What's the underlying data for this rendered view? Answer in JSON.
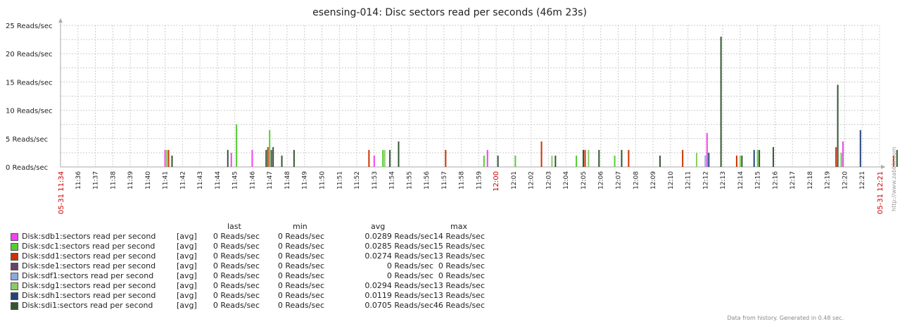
{
  "footer": "Data from history. Generated in 0.48 sec.",
  "side_url": "http://www.zabbix.com",
  "legend_headers": {
    "last": "last",
    "min": "min",
    "avg": "avg",
    "max": "max"
  },
  "chart_data": {
    "type": "bar",
    "title": "esensing-014: Disc sectors read per seconds (46m 23s)",
    "ylim": [
      0,
      25
    ],
    "y_ticks": [
      "0 Reads/sec",
      "5 Reads/sec",
      "10 Reads/sec",
      "15 Reads/sec",
      "20 Reads/sec",
      "25 Reads/sec"
    ],
    "x_range_minutes": [
      694,
      741
    ],
    "x_ticks": [
      "11:36",
      "11:37",
      "11:38",
      "11:39",
      "11:40",
      "11:41",
      "11:42",
      "11:43",
      "11:44",
      "11:45",
      "11:46",
      "11:47",
      "11:48",
      "11:49",
      "11:50",
      "11:51",
      "11:52",
      "11:53",
      "11:54",
      "11:55",
      "11:56",
      "11:57",
      "11:58",
      "11:59",
      "12:00",
      "12:01",
      "12:02",
      "12:03",
      "12:04",
      "12:05",
      "12:06",
      "12:07",
      "12:08",
      "12:09",
      "12:10",
      "12:11",
      "12:12",
      "12:13",
      "12:14",
      "12:15",
      "12:16",
      "12:17",
      "12:18",
      "12:19",
      "12:20",
      "12:21"
    ],
    "x_label_start": "05-31 11:34",
    "x_label_end": "05-31 12:21",
    "grid": true,
    "series": [
      {
        "name": "Disk:sdb1:sectors read per second",
        "func": "[avg]",
        "color": "#ee44ee",
        "last": "0 Reads/sec",
        "min": "0 Reads/sec",
        "avg": "0.0289 Reads/sec",
        "max": "14 Reads/sec",
        "points": [
          [
            700.0,
            3
          ],
          [
            703.8,
            2.5
          ],
          [
            705.0,
            3
          ],
          [
            712.0,
            2
          ],
          [
            718.5,
            3
          ],
          [
            731.1,
            6
          ],
          [
            738.9,
            4.5
          ],
          [
            742.6,
            2
          ]
        ]
      },
      {
        "name": "Disk:sdc1:sectors read per second",
        "func": "[avg]",
        "color": "#55cc33",
        "last": "0 Reads/sec",
        "min": "0 Reads/sec",
        "avg": "0.0285 Reads/sec",
        "max": "15 Reads/sec",
        "points": [
          [
            704.1,
            7.5
          ],
          [
            706.0,
            6.5
          ],
          [
            712.5,
            3
          ],
          [
            718.3,
            2
          ],
          [
            720.1,
            2
          ],
          [
            723.6,
            2
          ],
          [
            725.8,
            2
          ],
          [
            734.0,
            3
          ],
          [
            738.8,
            2.5
          ]
        ]
      },
      {
        "name": "Disk:sdd1:sectors read per second",
        "func": "[avg]",
        "color": "#cc3300",
        "last": "0 Reads/sec",
        "min": "0 Reads/sec",
        "avg": "0.0274 Reads/sec",
        "max": "13 Reads/sec",
        "points": [
          [
            700.2,
            3
          ],
          [
            705.9,
            3.5
          ],
          [
            711.7,
            3
          ],
          [
            716.1,
            3
          ],
          [
            721.6,
            4.5
          ],
          [
            724.1,
            3
          ],
          [
            726.6,
            3
          ],
          [
            729.7,
            3
          ],
          [
            732.8,
            2
          ],
          [
            738.5,
            3.5
          ],
          [
            741.8,
            2
          ]
        ]
      },
      {
        "name": "Disk:sde1:sectors read per second",
        "func": "[avg]",
        "color": "#664466",
        "last": "0 Reads/sec",
        "min": "0 Reads/sec",
        "avg": "0 Reads/sec",
        "max": "0 Reads/sec",
        "points": [
          [
            706.1,
            3
          ]
        ]
      },
      {
        "name": "Disk:sdf1:sectors read per second",
        "func": "[avg]",
        "color": "#88aadd",
        "last": "0 Reads/sec",
        "min": "0 Reads/sec",
        "avg": "0 Reads/sec",
        "max": "0 Reads/sec",
        "points": [
          [
            731.0,
            2
          ]
        ]
      },
      {
        "name": "Disk:sdg1:sectors read per second",
        "func": "[avg]",
        "color": "#88cc66",
        "last": "0 Reads/sec",
        "min": "0 Reads/sec",
        "avg": "0.0294 Reads/sec",
        "max": "13 Reads/sec",
        "points": [
          [
            700.1,
            3
          ],
          [
            712.6,
            3
          ],
          [
            722.2,
            2
          ],
          [
            724.3,
            3
          ],
          [
            730.5,
            2.5
          ],
          [
            733.0,
            2
          ],
          [
            743.0,
            3
          ]
        ]
      },
      {
        "name": "Disk:sdh1:sectors read per second",
        "func": "[avg]",
        "color": "#224477",
        "last": "0 Reads/sec",
        "min": "0 Reads/sec",
        "avg": "0.0119 Reads/sec",
        "max": "13 Reads/sec",
        "points": [
          [
            731.2,
            2.5
          ],
          [
            733.8,
            3
          ],
          [
            739.9,
            6.5
          ],
          [
            744.0,
            2.5
          ]
        ]
      },
      {
        "name": "Disk:sdi1:sectors read per second",
        "func": "[avg]",
        "color": "#335533",
        "last": "0 Reads/sec",
        "min": "0 Reads/sec",
        "avg": "0.0705 Reads/sec",
        "max": "46 Reads/sec",
        "points": [
          [
            700.4,
            2
          ],
          [
            703.6,
            3
          ],
          [
            705.8,
            3
          ],
          [
            706.2,
            3.5
          ],
          [
            706.7,
            2
          ],
          [
            707.4,
            3
          ],
          [
            712.9,
            3
          ],
          [
            713.4,
            4.5
          ],
          [
            719.1,
            2
          ],
          [
            722.4,
            2
          ],
          [
            724.0,
            3
          ],
          [
            724.9,
            3
          ],
          [
            726.2,
            3
          ],
          [
            728.4,
            2
          ],
          [
            731.9,
            23
          ],
          [
            733.1,
            2
          ],
          [
            734.1,
            3
          ],
          [
            734.9,
            3.5
          ],
          [
            738.6,
            14.5
          ],
          [
            742.0,
            3
          ]
        ]
      }
    ]
  }
}
